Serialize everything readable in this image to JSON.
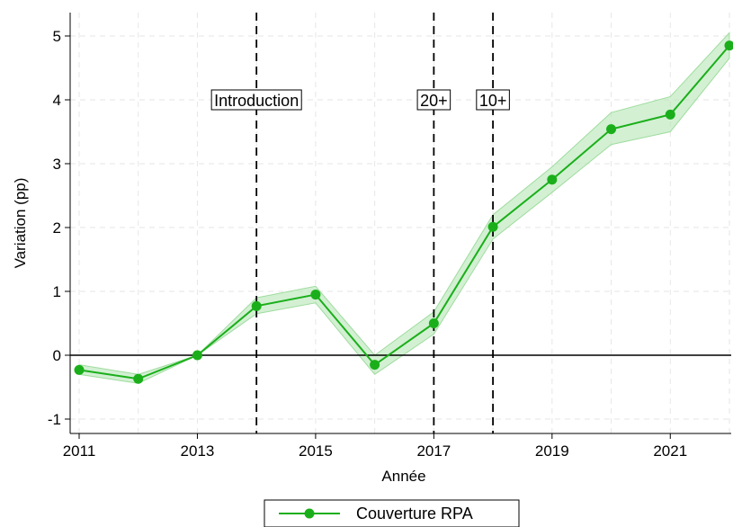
{
  "chart_data": {
    "type": "line",
    "xlabel": "Année",
    "ylabel": "Variation (pp)",
    "xlim": [
      2011,
      2022
    ],
    "ylim": [
      -1,
      5
    ],
    "xticks": [
      2011,
      2013,
      2015,
      2017,
      2019,
      2021
    ],
    "yticks": [
      -1,
      0,
      1,
      2,
      3,
      4,
      5
    ],
    "grid": true,
    "legend_position": "bottom",
    "x": [
      2011,
      2012,
      2013,
      2014,
      2015,
      2016,
      2017,
      2018,
      2019,
      2020,
      2021,
      2022
    ],
    "series": [
      {
        "name": "Couverture RPA",
        "color": "#1aaf1a",
        "values": [
          -0.23,
          -0.37,
          0.0,
          0.77,
          0.95,
          -0.15,
          0.5,
          2.01,
          2.75,
          3.54,
          3.77,
          4.85
        ],
        "ci_lower": [
          -0.3,
          -0.44,
          0.0,
          0.65,
          0.82,
          -0.3,
          0.33,
          1.82,
          2.55,
          3.3,
          3.5,
          4.65
        ],
        "ci_upper": [
          -0.15,
          -0.3,
          0.0,
          0.9,
          1.08,
          0.0,
          0.68,
          2.2,
          2.95,
          3.8,
          4.05,
          5.05
        ]
      }
    ],
    "reference_lines": [
      {
        "x": 2014,
        "label": "Introduction"
      },
      {
        "x": 2017,
        "label": "20+"
      },
      {
        "x": 2018,
        "label": "10+"
      }
    ],
    "hline": 0
  }
}
